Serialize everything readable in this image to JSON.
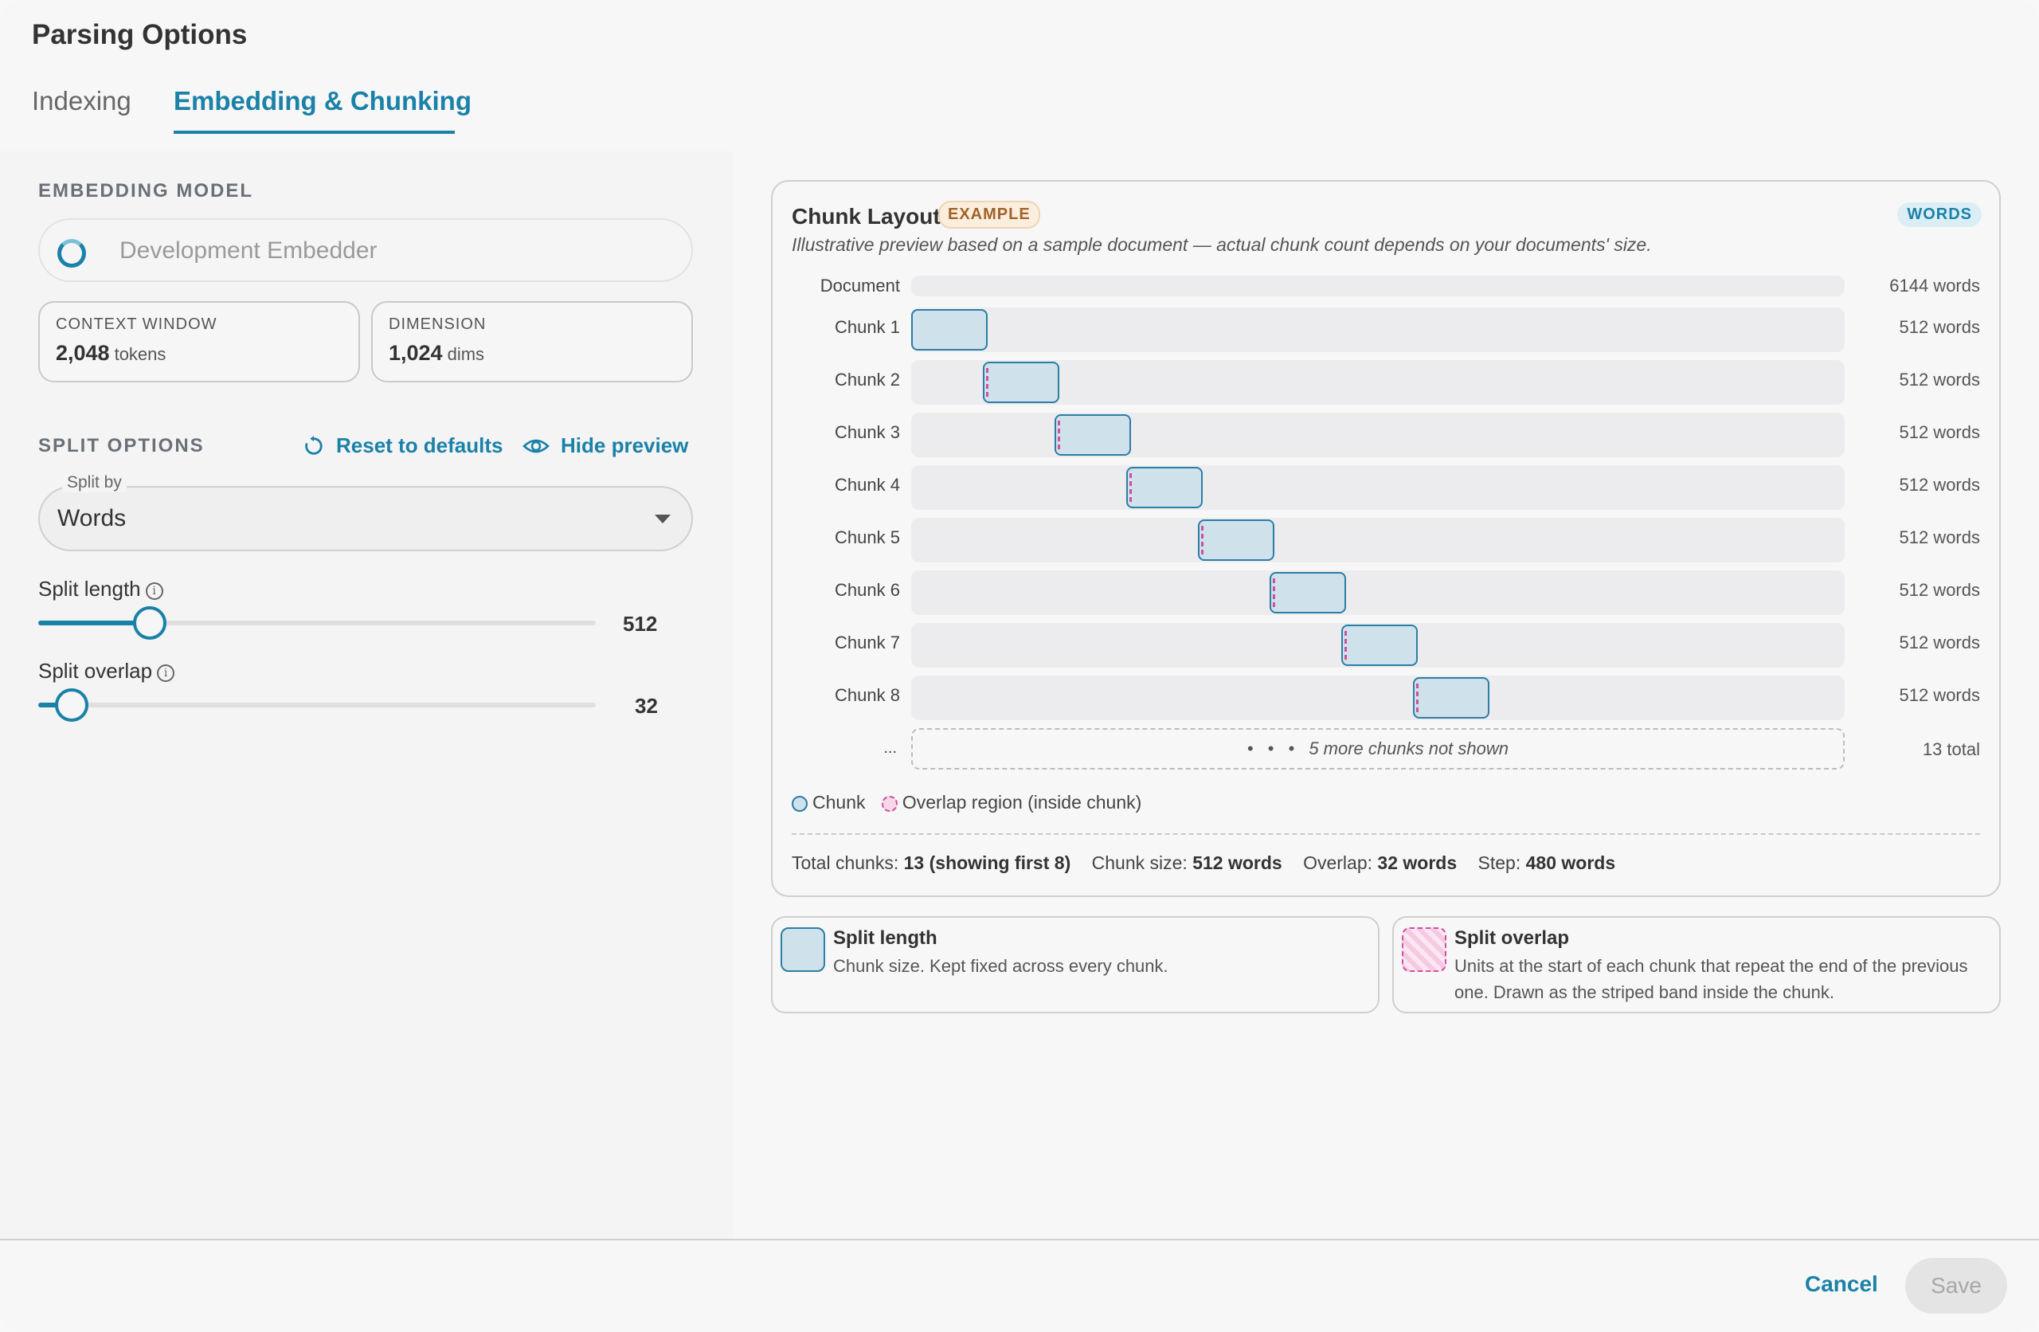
{
  "dialog": {
    "title": "Parsing Options"
  },
  "tabs": [
    {
      "label": "Indexing",
      "active": false
    },
    {
      "label": "Embedding & Chunking",
      "active": true
    }
  ],
  "embedding": {
    "section_label": "EMBEDDING MODEL",
    "model_name": "Development Embedder",
    "context_window": {
      "label": "CONTEXT WINDOW",
      "value": "2,048",
      "unit": "tokens"
    },
    "dimension": {
      "label": "DIMENSION",
      "value": "1,024",
      "unit": "dims"
    }
  },
  "split": {
    "section_label": "SPLIT OPTIONS",
    "reset_label": "Reset to defaults",
    "hide_preview_label": "Hide preview",
    "split_by_label": "Split by",
    "split_by_value": "Words",
    "length": {
      "label": "Split length",
      "value": "512",
      "fraction": 0.2
    },
    "overlap": {
      "label": "Split overlap",
      "value": "32",
      "fraction": 0.06
    }
  },
  "layout": {
    "title": "Chunk Layout",
    "example_badge": "EXAMPLE",
    "unit_badge": "WORDS",
    "subtitle": "Illustrative preview based on a sample document — actual chunk count depends on your documents' size.",
    "document_label": "Document",
    "document_count": "6144 words",
    "chunks": [
      {
        "label": "Chunk 1",
        "count": "512 words",
        "start": 0,
        "overlap": false
      },
      {
        "label": "Chunk 2",
        "count": "512 words",
        "start": 480,
        "overlap": true
      },
      {
        "label": "Chunk 3",
        "count": "512 words",
        "start": 960,
        "overlap": true
      },
      {
        "label": "Chunk 4",
        "count": "512 words",
        "start": 1440,
        "overlap": true
      },
      {
        "label": "Chunk 5",
        "count": "512 words",
        "start": 1920,
        "overlap": true
      },
      {
        "label": "Chunk 6",
        "count": "512 words",
        "start": 2400,
        "overlap": true
      },
      {
        "label": "Chunk 7",
        "count": "512 words",
        "start": 2880,
        "overlap": true
      },
      {
        "label": "Chunk 8",
        "count": "512 words",
        "start": 3360,
        "overlap": true
      }
    ],
    "total_words": 6144,
    "chunk_words": 512,
    "more_ellipsis": "...",
    "more_text": "5 more chunks not shown",
    "more_dots": "• • •",
    "total_label": "13 total",
    "legend_chunk": "Chunk",
    "legend_overlap": "Overlap region (inside chunk)",
    "summary": {
      "total_label": "Total chunks:",
      "total_value": "13 (showing first 8)",
      "size_label": "Chunk size:",
      "size_value": "512 words",
      "overlap_label": "Overlap:",
      "overlap_value": "32 words",
      "step_label": "Step:",
      "step_value": "480 words"
    }
  },
  "explain": {
    "length_title": "Split length",
    "length_desc": "Chunk size. Kept fixed across every chunk.",
    "overlap_title": "Split overlap",
    "overlap_desc": "Units at the start of each chunk that repeat the end of the previous one. Drawn as the striped band inside the chunk."
  },
  "footer": {
    "cancel_label": "Cancel",
    "save_label": "Save"
  },
  "colors": {
    "accent": "#1a81a8",
    "chunk_fill": "#cfe1ea",
    "overlap": "#d04fa0"
  }
}
